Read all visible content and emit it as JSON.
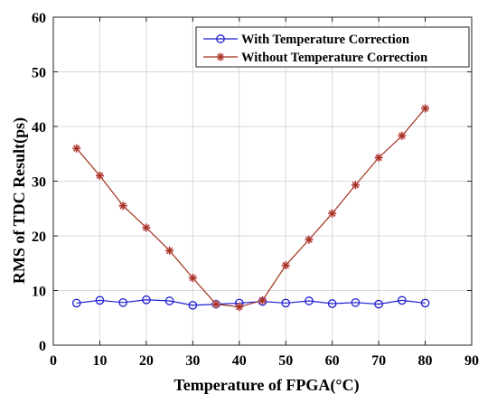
{
  "chart_data": {
    "type": "line",
    "title": "",
    "xlabel": "Temperature of FPGA(°C)",
    "ylabel": "RMS of TDC Result(ps)",
    "xlim": [
      0,
      90
    ],
    "ylim": [
      0,
      60
    ],
    "xticks": [
      0,
      10,
      20,
      30,
      40,
      50,
      60,
      70,
      80,
      90
    ],
    "yticks": [
      0,
      10,
      20,
      30,
      40,
      50,
      60
    ],
    "grid": true,
    "legend_position": "top-right",
    "x": [
      5,
      10,
      15,
      20,
      25,
      30,
      35,
      40,
      45,
      50,
      55,
      60,
      65,
      70,
      75,
      80
    ],
    "series": [
      {
        "name": "With Temperature Correction",
        "color": "#1f1fd0",
        "marker": "circle",
        "values": [
          7.7,
          8.2,
          7.8,
          8.3,
          8.1,
          7.3,
          7.5,
          7.7,
          8.0,
          7.7,
          8.1,
          7.6,
          7.8,
          7.5,
          8.2,
          7.7
        ]
      },
      {
        "name": "Without Temperature Correction",
        "color": "#a0321e",
        "marker": "asterisk",
        "values": [
          36.0,
          31.0,
          25.5,
          21.5,
          17.3,
          12.3,
          7.5,
          7.0,
          8.2,
          14.6,
          19.3,
          24.1,
          29.3,
          34.3,
          38.3,
          43.3
        ]
      }
    ]
  }
}
